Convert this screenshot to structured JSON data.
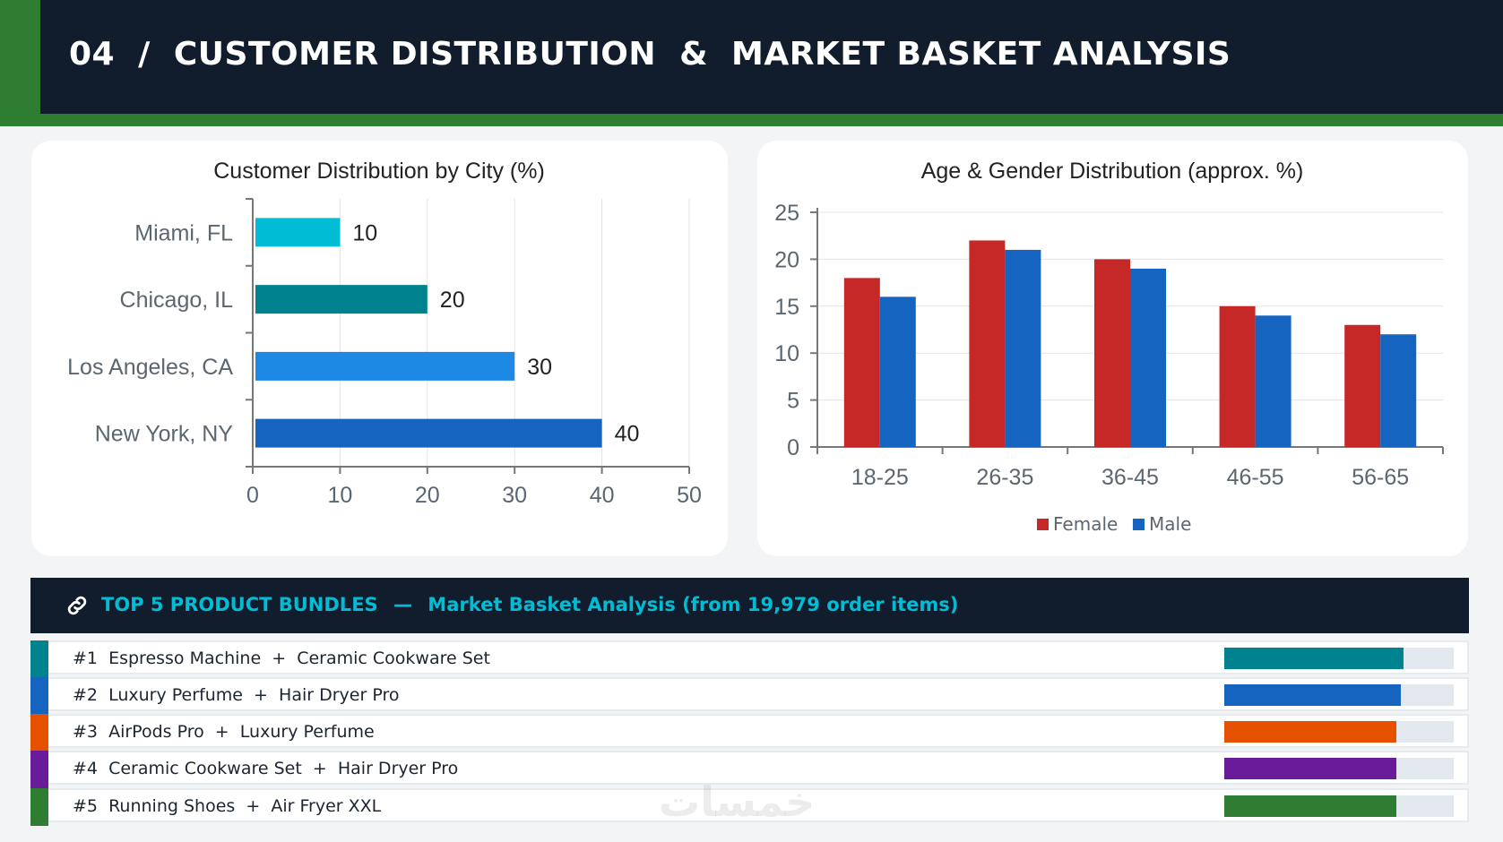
{
  "header": {
    "title": "04  /  CUSTOMER DISTRIBUTION  &  MARKET BASKET ANALYSIS"
  },
  "chart_data": [
    {
      "type": "bar",
      "orientation": "horizontal",
      "title": "Customer Distribution by City (%)",
      "categories": [
        "Miami, FL",
        "Chicago, IL",
        "Los Angeles, CA",
        "New York, NY"
      ],
      "values": [
        10,
        20,
        30,
        40
      ],
      "colors": [
        "#00bcd4",
        "#00838f",
        "#1e88e5",
        "#1565c0"
      ],
      "xlim": [
        0,
        50
      ],
      "xticks": [
        "0",
        "10",
        "20",
        "30",
        "40",
        "50"
      ],
      "grid": true
    },
    {
      "type": "bar",
      "title": "Age & Gender Distribution (approx. %)",
      "categories": [
        "18-25",
        "26-35",
        "36-45",
        "46-55",
        "56-65"
      ],
      "series": [
        {
          "name": "Female",
          "values": [
            18,
            22,
            20,
            15,
            13
          ],
          "color": "#c62828"
        },
        {
          "name": "Male",
          "values": [
            16,
            21,
            19,
            14,
            12
          ],
          "color": "#1565c0"
        }
      ],
      "ylim": [
        0,
        25
      ],
      "yticks": [
        "0",
        "5",
        "10",
        "15",
        "20",
        "25"
      ],
      "legend": "bottom",
      "grid": true
    }
  ],
  "bundles": {
    "icon": "link-icon",
    "title": "TOP 5 PRODUCT BUNDLES",
    "separator": "—",
    "subtitle": "Market Basket Analysis (from 19,979 order items)",
    "items": [
      {
        "label": "#1  Espresso Machine  +  Ceramic Cookware Set",
        "color": "#00838f",
        "fill": 0.78
      },
      {
        "label": "#2  Luxury Perfume  +  Hair Dryer Pro",
        "color": "#1565c0",
        "fill": 0.77
      },
      {
        "label": "#3  AirPods Pro  +  Luxury Perfume",
        "color": "#e65100",
        "fill": 0.75
      },
      {
        "label": "#4  Ceramic Cookware Set  +  Hair Dryer Pro",
        "color": "#6a1b9a",
        "fill": 0.75
      },
      {
        "label": "#5  Running Shoes  +  Air Fryer XXL",
        "color": "#2e7d32",
        "fill": 0.75
      }
    ]
  },
  "watermark": "خمسات"
}
